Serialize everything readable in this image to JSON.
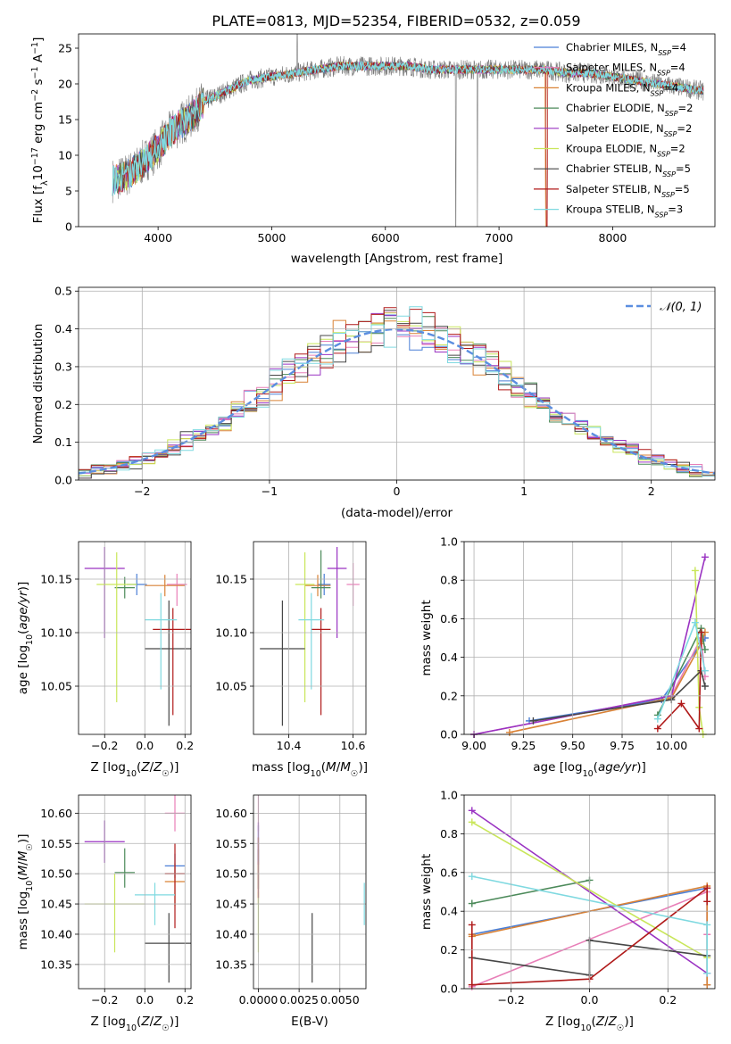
{
  "figure_title": "PLATE=0813, MJD=52354, FIBERID=0532, z=0.059",
  "colors": {
    "chabrier_miles": "#4a7fd6",
    "salpeter_miles": "#e87fb8",
    "kroupa_miles": "#d98236",
    "chabrier_elodie": "#4c8a5a",
    "salpeter_elodie": "#9a33c2",
    "kroupa_elodie": "#c9e65a",
    "chabrier_stelib": "#474747",
    "salpeter_stelib": "#b01a1a",
    "kroupa_stelib": "#7fd9e0",
    "data_spectrum": "#7a7a7a",
    "normal_curve": "#5b8ee0"
  },
  "chart_data": [
    {
      "id": "spectrum",
      "type": "line",
      "title": "PLATE=0813, MJD=52354, FIBERID=0532, z=0.059",
      "xlabel": "wavelength [Angstrom, rest frame]",
      "ylabel": "Flux [f_λ10^-17 erg cm^-2 s^-1 A^-1]",
      "xlim": [
        3300,
        8900
      ],
      "ylim": [
        0,
        27
      ],
      "xticks": [
        4000,
        5000,
        6000,
        7000,
        8000
      ],
      "yticks": [
        0,
        5,
        10,
        15,
        20,
        25
      ],
      "legend_position": "top-right",
      "legend": [
        "Chabrier MILES, N_SSP=4",
        "Salpeter MILES, N_SSP=4",
        "Kroupa MILES, N_SSP=4",
        "Chabrier ELODIE, N_SSP=2",
        "Salpeter ELODIE, N_SSP=2",
        "Kroupa ELODIE, N_SSP=2",
        "Chabrier STELIB, N_SSP=5",
        "Salpeter STELIB, N_SSP=5",
        "Kroupa STELIB, N_SSP=3"
      ],
      "continuum_x": [
        3600,
        3700,
        3800,
        3900,
        4000,
        4100,
        4200,
        4300,
        4400,
        4600,
        4800,
        5000,
        5200,
        5400,
        5600,
        5800,
        6000,
        6200,
        6400,
        6600,
        6800,
        7000,
        7200,
        7400,
        7600,
        7800,
        8000,
        8200,
        8400,
        8600,
        8800
      ],
      "continuum_y": [
        6.5,
        7,
        8,
        9.5,
        11,
        13,
        14.5,
        15.5,
        17.5,
        19,
        20.5,
        21,
        21.5,
        22,
        22.5,
        22.5,
        22.5,
        22.5,
        22,
        22,
        22,
        22,
        22,
        22,
        21.5,
        21.5,
        21,
        20.5,
        20,
        19.5,
        19
      ]
    },
    {
      "id": "residuals",
      "type": "line",
      "xlabel": "(data-model)/error",
      "ylabel": "Normed distribution",
      "xlim": [
        -2.5,
        2.5
      ],
      "ylim": [
        0,
        0.51
      ],
      "xticks": [
        -2,
        -1,
        0,
        1,
        2
      ],
      "yticks": [
        0.0,
        0.1,
        0.2,
        0.3,
        0.4,
        0.5
      ],
      "grid": true,
      "legend_position": "top-right",
      "legend": [
        "𝒩(0, 1)"
      ],
      "bin_width": 0.1
    },
    {
      "id": "age-vs-Z",
      "type": "scatter",
      "xlabel": "Z [log10(Z/Z☉)]",
      "ylabel": "age [log10(age/yr)]",
      "xlim": [
        -0.33,
        0.23
      ],
      "ylim": [
        10.005,
        10.185
      ],
      "xticks": [
        -0.2,
        0.0,
        0.2
      ],
      "yticks": [
        10.05,
        10.1,
        10.15
      ],
      "grid": true,
      "points": [
        {
          "x": -0.04,
          "y": 10.145,
          "xerr": 0.05,
          "yerr": [
            0.01,
            0.01
          ]
        },
        {
          "x": 0.16,
          "y": 10.145,
          "xerr": 0.05,
          "yerr": [
            0.02,
            0.01
          ]
        },
        {
          "x": 0.1,
          "y": 10.144,
          "xerr": 0.1,
          "yerr": [
            0.01,
            0.01
          ]
        },
        {
          "x": -0.1,
          "y": 10.142,
          "xerr": 0.05,
          "yerr": [
            0.01,
            0.01
          ]
        },
        {
          "x": -0.2,
          "y": 10.16,
          "xerr": 0.1,
          "yerr": [
            0.065,
            0.02
          ]
        },
        {
          "x": -0.14,
          "y": 10.145,
          "xerr": 0.1,
          "yerr": [
            0.11,
            0.03
          ]
        },
        {
          "x": 0.12,
          "y": 10.085,
          "xerr": 0.12,
          "yerr": [
            0.072,
            0.045
          ]
        },
        {
          "x": 0.14,
          "y": 10.103,
          "xerr": 0.1,
          "yerr": [
            0.08,
            0.02
          ]
        },
        {
          "x": 0.08,
          "y": 10.112,
          "xerr": 0.08,
          "yerr": [
            0.065,
            0.025
          ]
        }
      ]
    },
    {
      "id": "age-vs-mass",
      "type": "scatter",
      "xlabel": "mass [log10(M/M☉)]",
      "ylabel": "",
      "xlim": [
        10.29,
        10.64
      ],
      "ylim": [
        10.005,
        10.185
      ],
      "xticks": [
        10.4,
        10.6
      ],
      "yticks": [
        10.05,
        10.1,
        10.15
      ],
      "grid": true,
      "points": [
        {
          "x": 10.51,
          "y": 10.145,
          "xerr": 0.02,
          "yerr": [
            0.01,
            0.01
          ]
        },
        {
          "x": 10.6,
          "y": 10.145,
          "xerr": 0.02,
          "yerr": [
            0.02,
            0.02
          ]
        },
        {
          "x": 10.49,
          "y": 10.144,
          "xerr": 0.04,
          "yerr": [
            0.01,
            0.01
          ]
        },
        {
          "x": 10.5,
          "y": 10.142,
          "xerr": 0.03,
          "yerr": [
            0.01,
            0.035
          ]
        },
        {
          "x": 10.55,
          "y": 10.16,
          "xerr": 0.03,
          "yerr": [
            0.065,
            0.02
          ]
        },
        {
          "x": 10.45,
          "y": 10.145,
          "xerr": 0.03,
          "yerr": [
            0.11,
            0.03
          ]
        },
        {
          "x": 10.38,
          "y": 10.085,
          "xerr": 0.07,
          "yerr": [
            0.072,
            0.045
          ]
        },
        {
          "x": 10.5,
          "y": 10.103,
          "xerr": 0.03,
          "yerr": [
            0.08,
            0.02
          ]
        },
        {
          "x": 10.47,
          "y": 10.112,
          "xerr": 0.04,
          "yerr": [
            0.065,
            0.025
          ]
        }
      ]
    },
    {
      "id": "mass-weight-vs-age",
      "type": "line",
      "xlabel": "age [log10(age/yr)]",
      "ylabel": "mass weight",
      "xlim": [
        8.95,
        10.22
      ],
      "ylim": [
        0.0,
        1.0
      ],
      "xticks": [
        9.0,
        9.25,
        9.5,
        9.75,
        10.0
      ],
      "yticks": [
        0.0,
        0.2,
        0.4,
        0.6,
        0.8,
        1.0
      ],
      "grid": true,
      "series": [
        {
          "x": [
            9.28,
            9.95,
            10.17
          ],
          "y": [
            0.07,
            0.18,
            0.5
          ]
        },
        {
          "x": [
            9.0,
            10.0,
            10.15,
            10.17
          ],
          "y": [
            0.0,
            0.2,
            0.5,
            0.3
          ]
        },
        {
          "x": [
            9.18,
            10.0,
            10.15,
            10.17
          ],
          "y": [
            0.01,
            0.19,
            0.47,
            0.53
          ]
        },
        {
          "x": [
            9.93,
            10.15,
            10.17
          ],
          "y": [
            0.1,
            0.55,
            0.44
          ]
        },
        {
          "x": [
            9.0,
            10.0,
            10.17
          ],
          "y": [
            0.0,
            0.2,
            0.92
          ]
        },
        {
          "x": [
            10.12,
            10.14,
            10.16
          ],
          "y": [
            0.85,
            0.14,
            0.0
          ]
        },
        {
          "x": [
            9.3,
            10.0,
            10.15,
            10.17
          ],
          "y": [
            0.07,
            0.18,
            0.33,
            0.25
          ]
        },
        {
          "x": [
            9.93,
            10.05,
            10.14,
            10.15
          ],
          "y": [
            0.03,
            0.16,
            0.03,
            0.53
          ]
        },
        {
          "x": [
            9.93,
            10.12,
            10.17
          ],
          "y": [
            0.08,
            0.58,
            0.33
          ]
        }
      ]
    },
    {
      "id": "mass-vs-Z",
      "type": "scatter",
      "xlabel": "Z [log10(Z/Z☉)]",
      "ylabel": "mass [log10(M/M☉)]",
      "xlim": [
        -0.33,
        0.23
      ],
      "ylim": [
        10.31,
        10.63
      ],
      "xticks": [
        -0.2,
        0.0,
        0.2
      ],
      "yticks": [
        10.35,
        10.4,
        10.45,
        10.5,
        10.55,
        10.6
      ],
      "grid": true,
      "points": [
        {
          "x": 0.15,
          "y": 10.513,
          "xerr": 0.05,
          "yerr": [
            0.02,
            0.02
          ]
        },
        {
          "x": 0.15,
          "y": 10.6,
          "xerr": 0.05,
          "yerr": [
            0.03,
            0.03
          ]
        },
        {
          "x": 0.15,
          "y": 10.487,
          "xerr": 0.05,
          "yerr": [
            0.04,
            0.03
          ]
        },
        {
          "x": -0.1,
          "y": 10.502,
          "xerr": 0.05,
          "yerr": [
            0.025,
            0.04
          ]
        },
        {
          "x": -0.2,
          "y": 10.553,
          "xerr": 0.1,
          "yerr": [
            0.035,
            0.035
          ]
        },
        {
          "x": -0.15,
          "y": 10.45,
          "xerr": 0.15,
          "yerr": [
            0.08,
            0.05
          ]
        },
        {
          "x": 0.12,
          "y": 10.385,
          "xerr": 0.12,
          "yerr": [
            0.065,
            0.05
          ]
        },
        {
          "x": 0.15,
          "y": 10.5,
          "xerr": 0.05,
          "yerr": [
            0.09,
            0.05
          ]
        },
        {
          "x": 0.05,
          "y": 10.465,
          "xerr": 0.1,
          "yerr": [
            0.05,
            0.02
          ]
        }
      ]
    },
    {
      "id": "mass-vs-ebv",
      "type": "scatter",
      "xlabel": "E(B-V)",
      "ylabel": "",
      "xlim": [
        -0.0003,
        0.0066
      ],
      "ylim": [
        10.31,
        10.63
      ],
      "xticks": [
        0.0,
        0.0025,
        0.005
      ],
      "xticklabels": [
        "0.0000",
        "0.0025",
        "0.0050"
      ],
      "yticks": [
        10.35,
        10.4,
        10.45,
        10.5,
        10.55,
        10.6
      ],
      "grid": true,
      "points": [
        {
          "x": 0.0,
          "y": 10.55,
          "xerr": 0.0,
          "yerr": [
            0.03,
            0.03
          ]
        },
        {
          "x": 0.0,
          "y": 10.6,
          "xerr": 0.0,
          "yerr": [
            0.03,
            0.03
          ]
        },
        {
          "x": 0.0,
          "y": 10.49,
          "xerr": 0.0,
          "yerr": [
            0.04,
            0.03
          ]
        },
        {
          "x": 0.0,
          "y": 10.5,
          "xerr": 0.0,
          "yerr": [
            0.025,
            0.04
          ]
        },
        {
          "x": 0.0,
          "y": 10.55,
          "xerr": 0.0,
          "yerr": [
            0.035,
            0.035
          ]
        },
        {
          "x": 0.0,
          "y": 10.42,
          "xerr": 0.0,
          "yerr": [
            0.05,
            0.05
          ]
        },
        {
          "x": 0.0033,
          "y": 10.38,
          "xerr": 0.0,
          "yerr": [
            0.06,
            0.055
          ]
        },
        {
          "x": 0.0,
          "y": 10.51,
          "xerr": 0.0,
          "yerr": [
            0.05,
            0.05
          ]
        },
        {
          "x": 0.0065,
          "y": 10.45,
          "xerr": 0.0,
          "yerr": [
            0.035,
            0.035
          ]
        }
      ]
    },
    {
      "id": "mass-weight-vs-Z",
      "type": "line",
      "xlabel": "Z [log10(Z/Z☉)]",
      "ylabel": "mass weight",
      "xlim": [
        -0.32,
        0.32
      ],
      "ylim": [
        0.0,
        1.0
      ],
      "xticks": [
        -0.2,
        0.0,
        0.2
      ],
      "yticks": [
        0.0,
        0.2,
        0.4,
        0.6,
        0.8,
        1.0
      ],
      "grid": true,
      "series": [
        {
          "x": [
            -0.3,
            0.3,
            0.3
          ],
          "y": [
            0.28,
            0.52,
            0.02
          ]
        },
        {
          "x": [
            -0.3,
            0.3,
            0.3
          ],
          "y": [
            0.01,
            0.5,
            0.28
          ]
        },
        {
          "x": [
            -0.3,
            -0.3,
            0.3,
            0.3
          ],
          "y": [
            0.28,
            0.27,
            0.53,
            0.02
          ]
        },
        {
          "x": [
            -0.3,
            0.0
          ],
          "y": [
            0.44,
            0.56
          ]
        },
        {
          "x": [
            -0.3,
            0.3
          ],
          "y": [
            0.92,
            0.08
          ]
        },
        {
          "x": [
            -0.3,
            0.3
          ],
          "y": [
            0.86,
            0.16
          ]
        },
        {
          "x": [
            -0.3,
            0.0,
            0.0,
            0.3
          ],
          "y": [
            0.16,
            0.07,
            0.25,
            0.17
          ]
        },
        {
          "x": [
            -0.3,
            -0.3,
            0.0,
            0.3,
            0.3
          ],
          "y": [
            0.33,
            0.02,
            0.05,
            0.52,
            0.45
          ]
        },
        {
          "x": [
            -0.3,
            0.3,
            0.3
          ],
          "y": [
            0.58,
            0.33,
            0.08
          ]
        }
      ]
    }
  ]
}
